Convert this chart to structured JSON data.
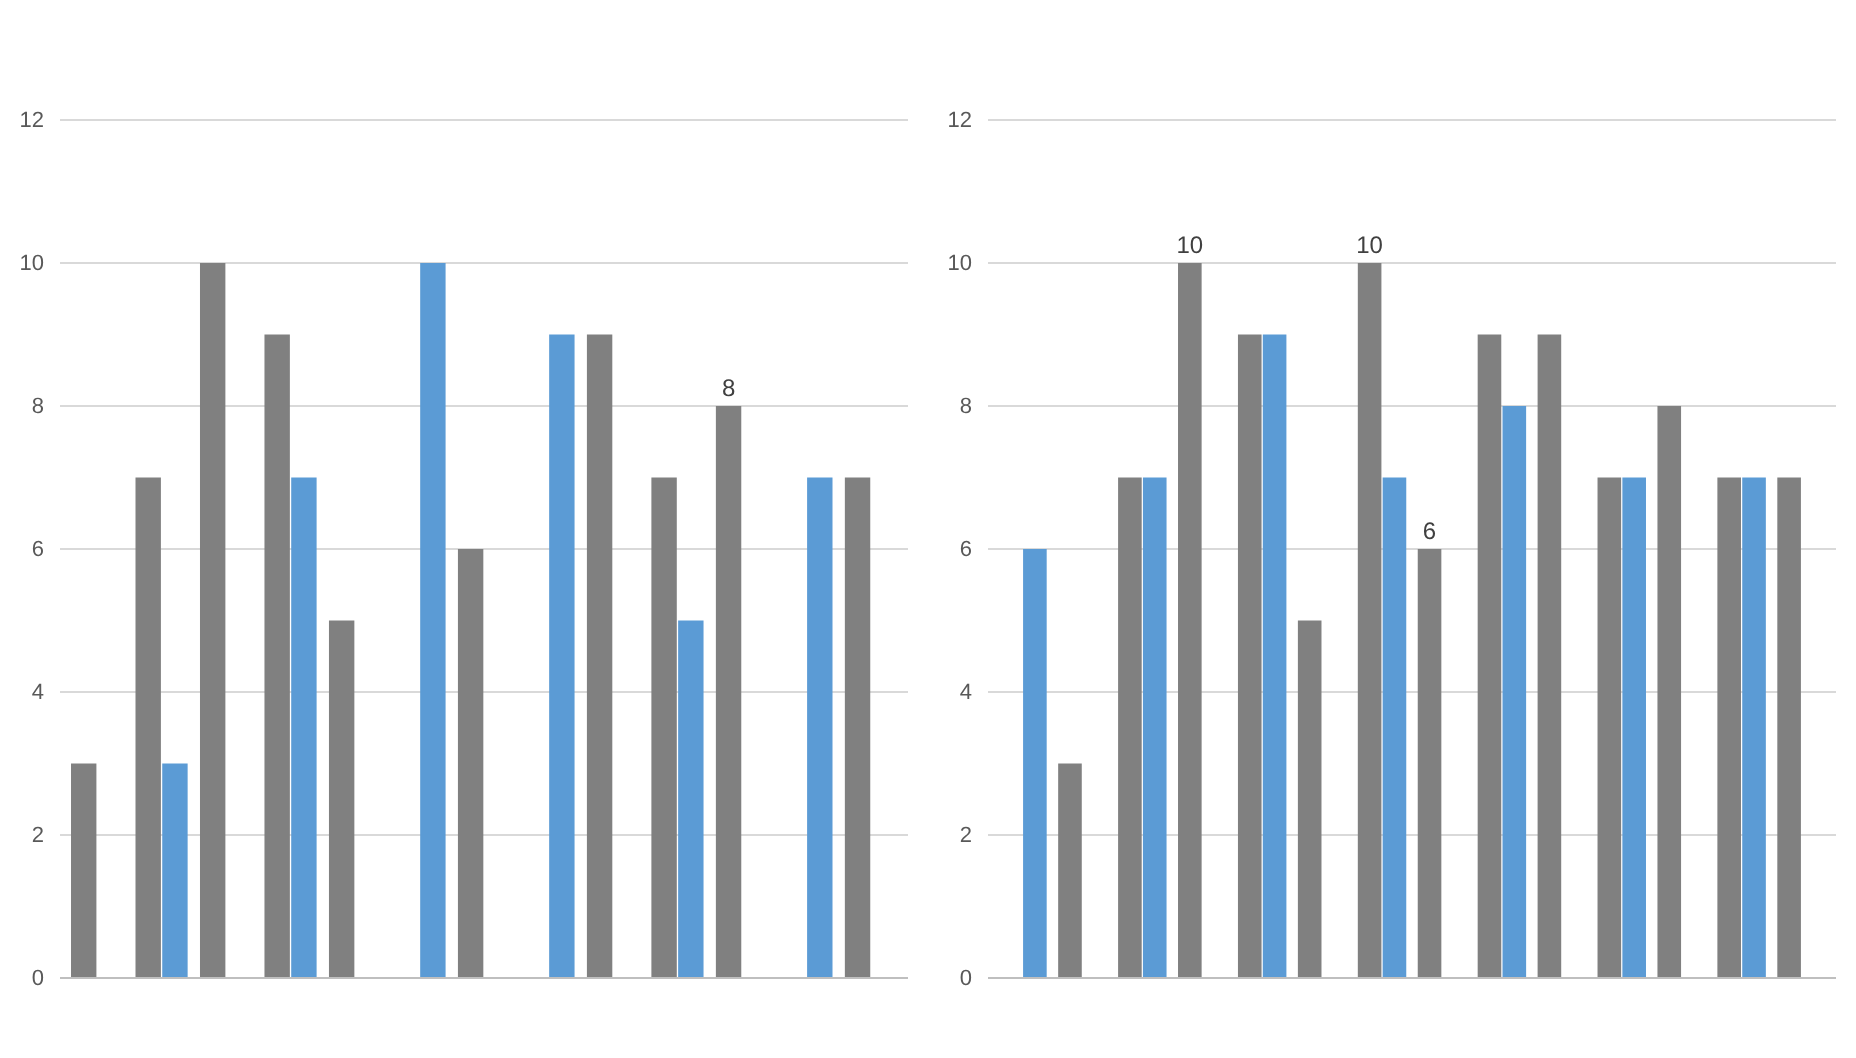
{
  "chart_data": [
    {
      "type": "bar",
      "categories": [
        null,
        null,
        null,
        null,
        null,
        null,
        null,
        null,
        null,
        null,
        null,
        null,
        null
      ],
      "ylim": [
        0,
        12
      ],
      "yticks": [
        0,
        2,
        4,
        6,
        8,
        10,
        12
      ],
      "grid": "y",
      "series": [
        {
          "color": "#808080",
          "values": [
            3,
            7,
            10,
            9,
            5,
            null,
            6,
            null,
            9,
            7,
            8,
            null,
            7
          ],
          "value_labels": [
            null,
            null,
            null,
            null,
            null,
            null,
            null,
            null,
            null,
            null,
            "8",
            null,
            null
          ]
        },
        {
          "color": "#5b9bd5",
          "values": [
            null,
            3,
            null,
            7,
            null,
            10,
            null,
            9,
            null,
            5,
            null,
            7,
            null
          ]
        }
      ]
    },
    {
      "type": "bar",
      "categories": [
        null,
        null,
        null,
        null,
        null,
        null,
        null,
        null,
        null,
        null,
        null,
        null,
        null,
        null
      ],
      "ylim": [
        0,
        12
      ],
      "yticks": [
        0,
        2,
        4,
        6,
        8,
        10,
        12
      ],
      "grid": "y",
      "series": [
        {
          "color": "#808080",
          "values": [
            null,
            3,
            7,
            10,
            9,
            5,
            10,
            6,
            9,
            9,
            7,
            8,
            7,
            7
          ],
          "value_labels": [
            null,
            null,
            null,
            "10",
            null,
            null,
            "10",
            "6",
            null,
            null,
            null,
            null,
            null,
            null
          ]
        },
        {
          "color": "#5b9bd5",
          "values": [
            6,
            null,
            7,
            null,
            9,
            null,
            7,
            null,
            8,
            null,
            7,
            null,
            7,
            null
          ]
        }
      ]
    }
  ]
}
